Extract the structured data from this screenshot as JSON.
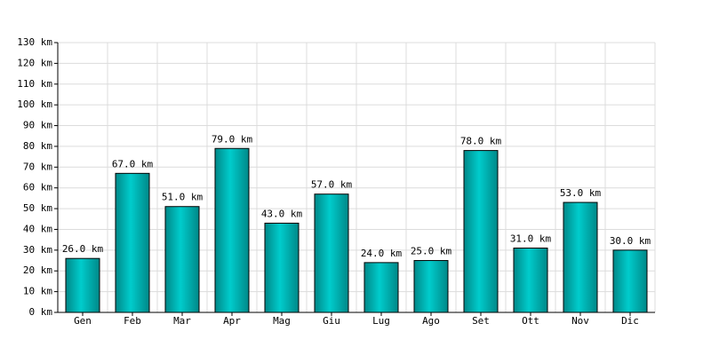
{
  "chart_data": {
    "type": "bar",
    "categories": [
      "Gen",
      "Feb",
      "Mar",
      "Apr",
      "Mag",
      "Giu",
      "Lug",
      "Ago",
      "Set",
      "Ott",
      "Nov",
      "Dic"
    ],
    "values": [
      26,
      67,
      51,
      79,
      43,
      57,
      24,
      25,
      78,
      31,
      53,
      30
    ],
    "value_labels": [
      "26.0 km",
      "67.0 km",
      "51.0 km",
      "79.0 km",
      "43.0 km",
      "57.0 km",
      "24.0 km",
      "25.0 km",
      "78.0 km",
      "31.0 km",
      "53.0 km",
      "30.0 km"
    ],
    "color": "#00cccc",
    "ylim": [
      0,
      130
    ],
    "yticks": [
      {
        "value": 0,
        "label": "0 km"
      },
      {
        "value": 10,
        "label": "10 km"
      },
      {
        "value": 20,
        "label": "20 km"
      },
      {
        "value": 30,
        "label": "30 km"
      },
      {
        "value": 40,
        "label": "40 km"
      },
      {
        "value": 50,
        "label": "50 km"
      },
      {
        "value": 60,
        "label": "60 km"
      },
      {
        "value": 70,
        "label": "70 km"
      },
      {
        "value": 80,
        "label": "80 km"
      },
      {
        "value": 90,
        "label": "90 km"
      },
      {
        "value": 100,
        "label": "100 km"
      },
      {
        "value": 110,
        "label": "110 km"
      },
      {
        "value": 120,
        "label": "120 km"
      },
      {
        "value": 130,
        "label": "130 km"
      }
    ],
    "grid": true
  }
}
